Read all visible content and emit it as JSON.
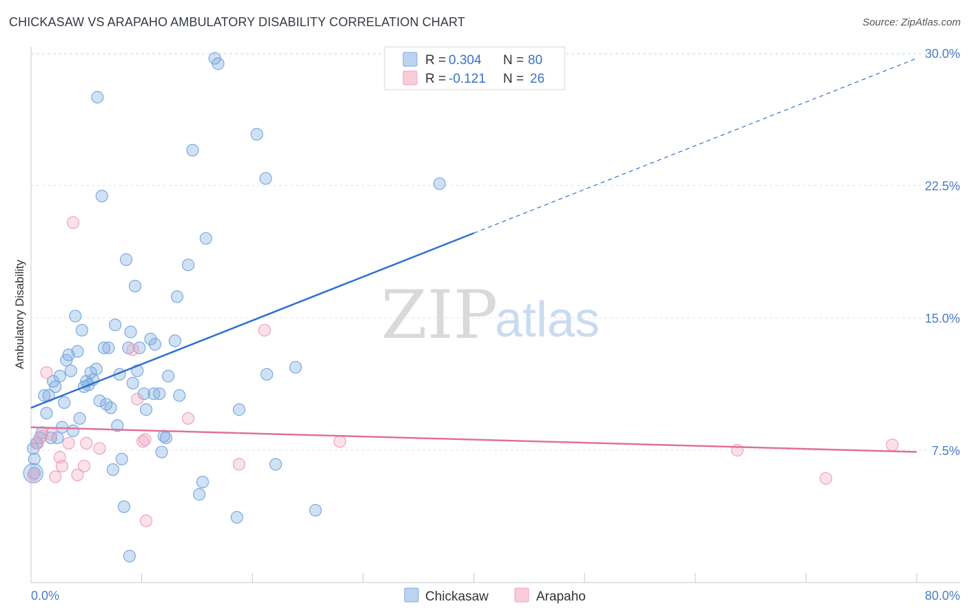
{
  "header": {
    "title": "CHICKASAW VS ARAPAHO AMBULATORY DISABILITY CORRELATION CHART",
    "source": "Source: ZipAtlas.com"
  },
  "watermark": {
    "zip": "ZIP",
    "atlas": "atlas"
  },
  "colors": {
    "chickasaw": "#7aa9e0",
    "chickasaw_line": "#2e6fd1",
    "arapaho": "#f0a0bb",
    "arapaho_line": "#e0709a",
    "tick_text": "#4a7cc4",
    "grid": "#dde3ea"
  },
  "legend": {
    "rows": [
      {
        "r_label": "R =",
        "r_value": "0.304",
        "n_label": "N =",
        "n_value": "80"
      },
      {
        "r_label": "R =",
        "r_value": "-0.121",
        "n_label": "N =",
        "n_value": "26"
      }
    ]
  },
  "chart_data": {
    "type": "scatter",
    "title": "CHICKASAW VS ARAPAHO AMBULATORY DISABILITY CORRELATION CHART",
    "xlabel": "",
    "ylabel": "Ambulatory Disability",
    "xlim": [
      0,
      80
    ],
    "ylim": [
      0,
      31
    ],
    "x_tick_labels": [
      "0.0%",
      "80.0%"
    ],
    "y_ticks": [
      7.5,
      15.0,
      22.5,
      30.0
    ],
    "y_tick_labels": [
      "7.5%",
      "15.0%",
      "22.5%",
      "30.0%"
    ],
    "grid": true,
    "legend_position": "top-center",
    "series": [
      {
        "name": "Chickasaw",
        "R": 0.304,
        "N": 80,
        "trend": {
          "x_start": 0,
          "y_start": 9.9,
          "x_solid_end": 40,
          "y_solid_end": 19.8,
          "x_end": 80,
          "y_end": 29.7
        },
        "points": [
          [
            0.3,
            6.2
          ],
          [
            0.3,
            7.0
          ],
          [
            0.5,
            7.9
          ],
          [
            0.8,
            8.2
          ],
          [
            1.0,
            8.5
          ],
          [
            1.2,
            10.6
          ],
          [
            1.4,
            9.6
          ],
          [
            1.6,
            10.6
          ],
          [
            1.8,
            8.2
          ],
          [
            2.0,
            11.4
          ],
          [
            2.2,
            11.1
          ],
          [
            2.4,
            8.2
          ],
          [
            2.6,
            11.7
          ],
          [
            2.8,
            8.8
          ],
          [
            3.0,
            10.2
          ],
          [
            3.2,
            12.6
          ],
          [
            3.4,
            12.9
          ],
          [
            3.6,
            12.0
          ],
          [
            3.8,
            8.6
          ],
          [
            4.0,
            15.1
          ],
          [
            4.2,
            13.1
          ],
          [
            4.4,
            9.3
          ],
          [
            4.6,
            14.3
          ],
          [
            4.8,
            11.1
          ],
          [
            5.0,
            11.4
          ],
          [
            5.2,
            11.2
          ],
          [
            5.4,
            11.9
          ],
          [
            5.6,
            11.5
          ],
          [
            5.9,
            12.1
          ],
          [
            6.0,
            27.5
          ],
          [
            6.2,
            10.3
          ],
          [
            6.4,
            21.9
          ],
          [
            6.6,
            13.3
          ],
          [
            6.8,
            10.1
          ],
          [
            7.0,
            13.3
          ],
          [
            7.2,
            9.9
          ],
          [
            7.4,
            6.4
          ],
          [
            7.6,
            14.6
          ],
          [
            7.8,
            8.9
          ],
          [
            8.0,
            11.8
          ],
          [
            8.2,
            7.0
          ],
          [
            8.4,
            4.3
          ],
          [
            8.6,
            18.3
          ],
          [
            8.8,
            13.3
          ],
          [
            8.9,
            1.5
          ],
          [
            9.0,
            14.2
          ],
          [
            9.2,
            11.3
          ],
          [
            9.4,
            16.8
          ],
          [
            9.6,
            12.0
          ],
          [
            9.8,
            13.3
          ],
          [
            10.2,
            10.7
          ],
          [
            10.4,
            9.8
          ],
          [
            10.8,
            13.8
          ],
          [
            11.1,
            10.7
          ],
          [
            11.2,
            13.5
          ],
          [
            11.6,
            10.7
          ],
          [
            11.8,
            7.4
          ],
          [
            12.0,
            8.3
          ],
          [
            12.2,
            8.2
          ],
          [
            12.4,
            11.7
          ],
          [
            13.0,
            13.7
          ],
          [
            13.2,
            16.2
          ],
          [
            13.4,
            10.6
          ],
          [
            14.6,
            24.5
          ],
          [
            14.2,
            18.0
          ],
          [
            15.5,
            5.7
          ],
          [
            15.8,
            19.5
          ],
          [
            15.2,
            5.0
          ],
          [
            16.6,
            29.7
          ],
          [
            16.9,
            29.4
          ],
          [
            18.6,
            3.7
          ],
          [
            18.8,
            9.8
          ],
          [
            20.4,
            25.4
          ],
          [
            21.2,
            22.9
          ],
          [
            21.3,
            11.8
          ],
          [
            22.1,
            6.7
          ],
          [
            23.9,
            12.2
          ],
          [
            25.7,
            4.1
          ],
          [
            36.9,
            22.6
          ],
          [
            0.2,
            7.6
          ]
        ]
      },
      {
        "name": "Arapaho",
        "R": -0.121,
        "N": 26,
        "trend": {
          "x_start": 0,
          "y_start": 8.8,
          "x_end": 80,
          "y_end": 7.4
        },
        "points": [
          [
            0.2,
            6.1
          ],
          [
            0.6,
            7.9
          ],
          [
            1.0,
            8.3
          ],
          [
            1.4,
            11.9
          ],
          [
            1.8,
            8.4
          ],
          [
            2.2,
            6.0
          ],
          [
            2.6,
            7.1
          ],
          [
            2.8,
            6.6
          ],
          [
            3.4,
            7.9
          ],
          [
            3.8,
            20.4
          ],
          [
            4.2,
            6.1
          ],
          [
            4.8,
            6.6
          ],
          [
            5.0,
            7.9
          ],
          [
            6.2,
            7.6
          ],
          [
            9.2,
            13.2
          ],
          [
            9.6,
            10.4
          ],
          [
            10.1,
            8.0
          ],
          [
            10.3,
            8.1
          ],
          [
            10.4,
            3.5
          ],
          [
            14.2,
            9.3
          ],
          [
            18.8,
            6.7
          ],
          [
            21.1,
            14.3
          ],
          [
            27.9,
            8.0
          ],
          [
            63.8,
            7.5
          ],
          [
            71.8,
            5.9
          ],
          [
            77.8,
            7.8
          ]
        ]
      }
    ]
  },
  "bottom_legend": {
    "items": [
      {
        "label": "Chickasaw"
      },
      {
        "label": "Arapaho"
      }
    ]
  }
}
